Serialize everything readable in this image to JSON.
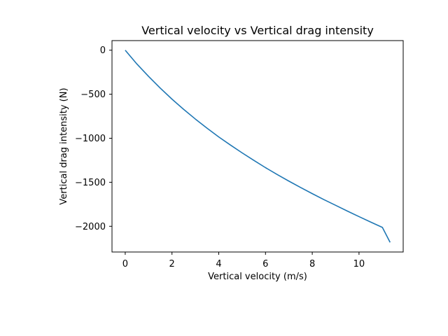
{
  "chart_data": {
    "type": "line",
    "title": "Vertical velocity vs Vertical drag intensity",
    "xlabel": "Vertical velocity (m/s)",
    "ylabel": "Vertical drag intensity (N)",
    "xlim": [
      -0.566,
      11.89
    ],
    "ylim": [
      -2292,
      109
    ],
    "grid": false,
    "x_ticks": [
      {
        "value": 0,
        "label": "0"
      },
      {
        "value": 2,
        "label": "2"
      },
      {
        "value": 4,
        "label": "4"
      },
      {
        "value": 6,
        "label": "6"
      },
      {
        "value": 8,
        "label": "8"
      },
      {
        "value": 10,
        "label": "10"
      }
    ],
    "y_ticks": [
      {
        "value": 0,
        "label": "0"
      },
      {
        "value": -500,
        "label": "−500"
      },
      {
        "value": -1000,
        "label": "−1000"
      },
      {
        "value": -1500,
        "label": "−1500"
      },
      {
        "value": -2000,
        "label": "−2000"
      }
    ],
    "series": [
      {
        "color": "#1f77b4",
        "x": [
          0,
          0.5,
          1,
          1.5,
          2,
          2.5,
          3,
          3.5,
          4,
          4.5,
          5,
          5.5,
          6,
          6.5,
          7,
          7.5,
          8,
          8.5,
          9,
          9.5,
          10,
          10.5,
          11,
          11.33
        ],
        "y": [
          0,
          -157,
          -298,
          -431,
          -556,
          -672,
          -782,
          -886,
          -985,
          -1077,
          -1166,
          -1251,
          -1334,
          -1412,
          -1487,
          -1559,
          -1629,
          -1697,
          -1762,
          -1827,
          -1890,
          -1952,
          -2013,
          -2183
        ]
      }
    ]
  }
}
